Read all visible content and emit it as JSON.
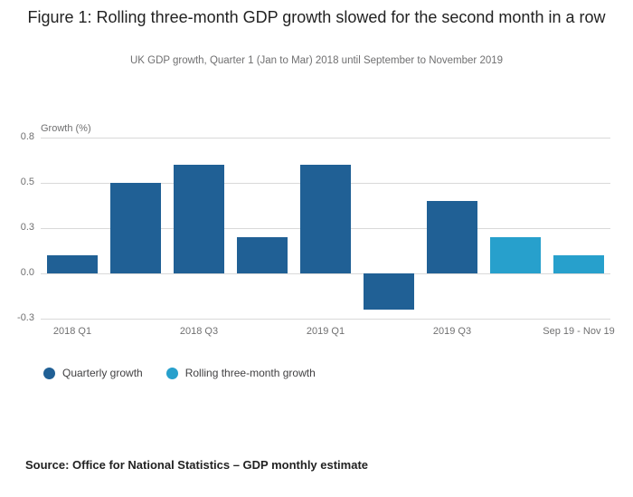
{
  "colors": {
    "quarterly": "#206095",
    "rolling": "#27a0cc",
    "gridline": "#d9d9d9",
    "axis_text": "#707071"
  },
  "source": "Source: Office for National Statistics – GDP monthly estimate",
  "chart_data": {
    "type": "bar",
    "title": "Figure 1: Rolling three-month GDP growth slowed for the second month in a row",
    "subtitle": "UK GDP growth, Quarter 1 (Jan to Mar) 2018 until September to November 2019",
    "ylabel": "Growth (%)",
    "ylim": [
      -0.25,
      0.75
    ],
    "grid": true,
    "legend_position": "bottom-left",
    "yticks": [
      {
        "label": "0.8",
        "value": 0.75
      },
      {
        "label": "0.5",
        "value": 0.5
      },
      {
        "label": "0.3",
        "value": 0.25
      },
      {
        "label": "0.0",
        "value": 0.0
      },
      {
        "label": "-0.3",
        "value": -0.25
      }
    ],
    "bars": [
      {
        "value": 0.1,
        "series": "quarterly"
      },
      {
        "value": 0.5,
        "series": "quarterly"
      },
      {
        "value": 0.6,
        "series": "quarterly"
      },
      {
        "value": 0.2,
        "series": "quarterly"
      },
      {
        "value": 0.6,
        "series": "quarterly"
      },
      {
        "value": -0.2,
        "series": "quarterly"
      },
      {
        "value": 0.4,
        "series": "quarterly"
      },
      {
        "value": 0.2,
        "series": "rolling"
      },
      {
        "value": 0.1,
        "series": "rolling"
      }
    ],
    "xticks": [
      {
        "index": 0,
        "label": "2018 Q1"
      },
      {
        "index": 2,
        "label": "2018 Q3"
      },
      {
        "index": 4,
        "label": "2019 Q1"
      },
      {
        "index": 6,
        "label": "2019 Q3"
      },
      {
        "index": 8,
        "label": "Sep 19 - Nov 19"
      }
    ],
    "legend": [
      {
        "label": "Quarterly growth",
        "series": "quarterly"
      },
      {
        "label": "Rolling three-month growth",
        "series": "rolling"
      }
    ]
  }
}
